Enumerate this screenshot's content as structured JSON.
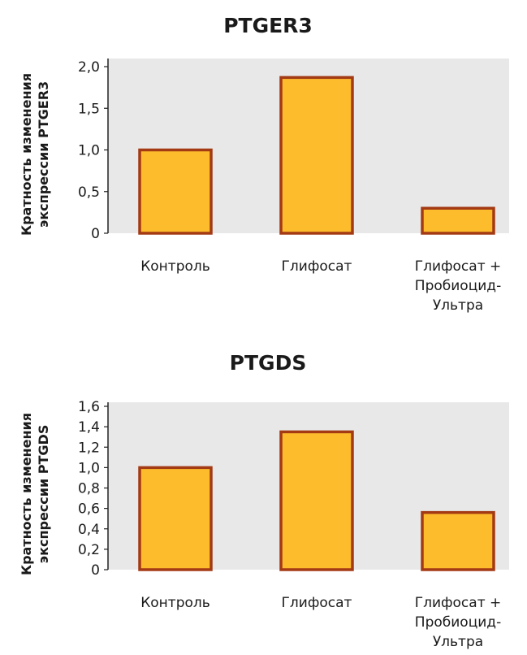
{
  "chart_data": [
    {
      "type": "bar",
      "title": "PTGER3",
      "ylabel": [
        "Кратность изменения",
        "экспрессии  PTGER3"
      ],
      "categories": [
        [
          "Контроль"
        ],
        [
          "Глифосат"
        ],
        [
          "Глифосат +",
          "Пробиоцид-",
          "Ультра"
        ]
      ],
      "values": [
        1.0,
        1.87,
        0.3
      ],
      "ylim": [
        0,
        2.0
      ],
      "yticks": [
        "2,0",
        "1,5",
        "1,0",
        "0,5",
        "0"
      ],
      "ytick_values": [
        2.0,
        1.5,
        1.0,
        0.5,
        0
      ],
      "grid": false,
      "colors": {
        "bar_fill": "#FDBC2C",
        "bar_stroke": "#A33A14",
        "plot_bg": "#E8E8E8",
        "axis": "#222222"
      }
    },
    {
      "type": "bar",
      "title": "PTGDS",
      "ylabel": [
        "Кратность изменения",
        "экспрессии PTGDS"
      ],
      "categories": [
        [
          "Контроль"
        ],
        [
          "Глифосат"
        ],
        [
          "Глифосат +",
          "Пробиоцид-",
          "Ультра"
        ]
      ],
      "values": [
        1.0,
        1.35,
        0.56
      ],
      "ylim": [
        0,
        1.6
      ],
      "yticks": [
        "1,6",
        "1,4",
        "1,2",
        "1,0",
        "0,8",
        "0,6",
        "0,4",
        "0,2",
        "0"
      ],
      "ytick_values": [
        1.6,
        1.4,
        1.2,
        1.0,
        0.8,
        0.6,
        0.4,
        0.2,
        0
      ],
      "grid": false,
      "colors": {
        "bar_fill": "#FDBC2C",
        "bar_stroke": "#A33A14",
        "plot_bg": "#E8E8E8",
        "axis": "#222222"
      }
    }
  ]
}
